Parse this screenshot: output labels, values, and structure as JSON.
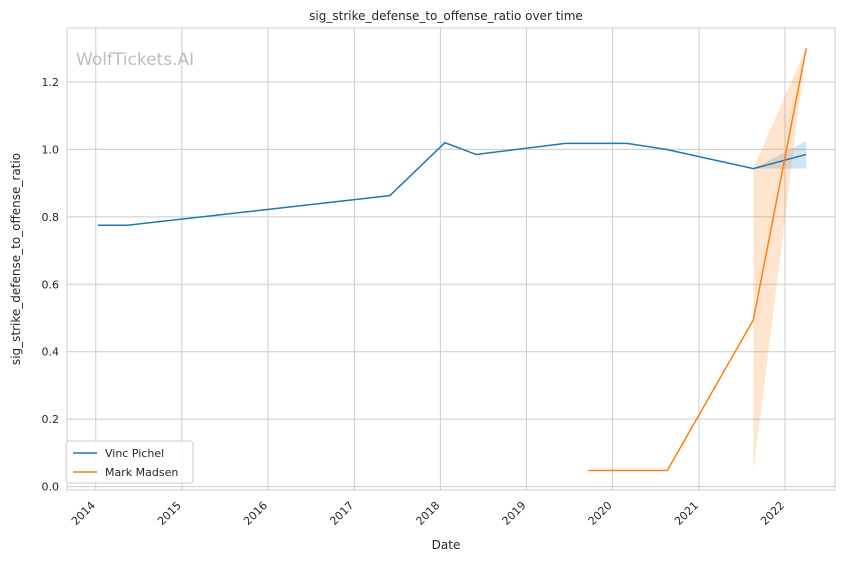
{
  "watermark": "WolfTickets.AI",
  "chart_data": {
    "type": "line",
    "title": "sig_strike_defense_to_offense_ratio over time",
    "xlabel": "Date",
    "ylabel": "sig_strike_defense_to_offense_ratio",
    "xlim": [
      "2013-09-01",
      "2022-08-01"
    ],
    "ylim": [
      -0.01,
      1.36
    ],
    "xticks": [
      "2014",
      "2015",
      "2016",
      "2017",
      "2018",
      "2019",
      "2020",
      "2021",
      "2022"
    ],
    "yticks": [
      "0.0",
      "0.2",
      "0.4",
      "0.6",
      "0.8",
      "1.0",
      "1.2"
    ],
    "grid": true,
    "legend": "lower-left",
    "series": [
      {
        "name": "Vinc Pichel",
        "color": "#1f77b4",
        "points": [
          {
            "x": "2014-01-10",
            "y": 0.775
          },
          {
            "x": "2014-05-15",
            "y": 0.775
          },
          {
            "x": "2017-06-01",
            "y": 0.863
          },
          {
            "x": "2018-01-20",
            "y": 1.02
          },
          {
            "x": "2018-06-01",
            "y": 0.985
          },
          {
            "x": "2019-06-15",
            "y": 1.018
          },
          {
            "x": "2020-03-01",
            "y": 1.018
          },
          {
            "x": "2020-08-15",
            "y": 1.0
          },
          {
            "x": "2021-08-20",
            "y": 0.943
          },
          {
            "x": "2022-04-01",
            "y": 0.985
          }
        ],
        "band": [
          {
            "x": "2021-08-20",
            "low": 0.943,
            "high": 0.943
          },
          {
            "x": "2022-04-01",
            "low": 0.943,
            "high": 1.025
          }
        ]
      },
      {
        "name": "Mark Madsen",
        "color": "#ff7f0e",
        "points": [
          {
            "x": "2019-09-20",
            "y": 0.048
          },
          {
            "x": "2020-08-20",
            "y": 0.048
          },
          {
            "x": "2021-08-20",
            "y": 0.495
          },
          {
            "x": "2022-04-01",
            "y": 1.3
          }
        ],
        "band": [
          {
            "x": "2021-08-20",
            "low": 0.045,
            "high": 0.945
          },
          {
            "x": "2022-04-01",
            "low": 1.3,
            "high": 1.3
          }
        ]
      }
    ]
  }
}
